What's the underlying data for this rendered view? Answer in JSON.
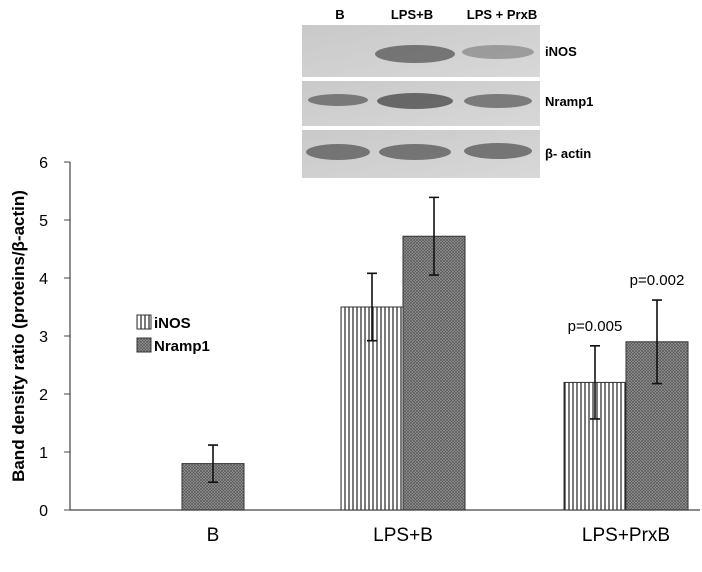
{
  "chart_data": {
    "type": "bar",
    "y_label": "Band density ratio (proteins/β-actin)",
    "categories": [
      "B",
      "LPS+B",
      "LPS+PrxB"
    ],
    "series": [
      {
        "name": "iNOS",
        "color": "#ffffff",
        "values": [
          null,
          3.5,
          2.2
        ],
        "errors": [
          null,
          0.58,
          0.63
        ]
      },
      {
        "name": "Nramp1",
        "color": "#8a8a8a",
        "values": [
          0.8,
          4.72,
          2.9
        ],
        "errors": [
          0.32,
          0.67,
          0.72
        ]
      }
    ],
    "annotations": [
      {
        "text": "p=0.005",
        "series": 0,
        "category": 2
      },
      {
        "text": "p=0.002",
        "series": 1,
        "category": 2
      }
    ],
    "ylim": [
      0,
      6
    ],
    "yticks": [
      0,
      1,
      2,
      3,
      4,
      5,
      6
    ],
    "grid": false,
    "legend": "left"
  },
  "blot": {
    "lanes": [
      "B",
      "LPS+B",
      "LPS + PrxB"
    ],
    "rows": [
      "iNOS",
      "Nramp1",
      "β- actin"
    ]
  }
}
